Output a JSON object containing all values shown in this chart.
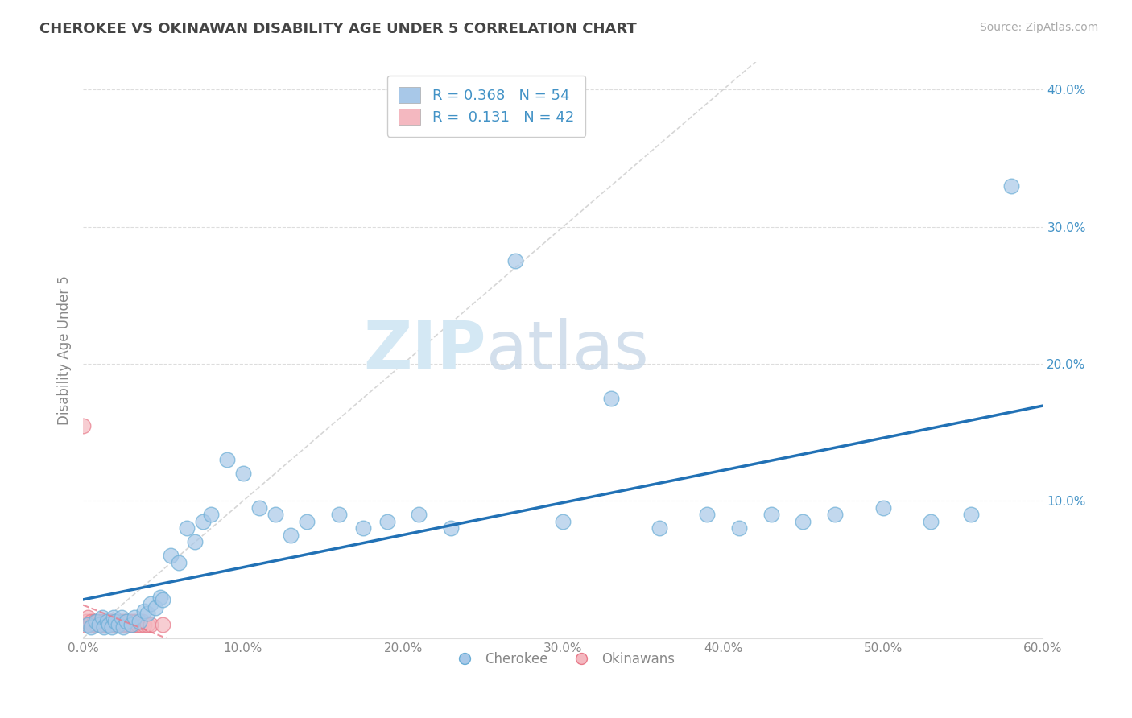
{
  "title": "CHEROKEE VS OKINAWAN DISABILITY AGE UNDER 5 CORRELATION CHART",
  "source": "Source: ZipAtlas.com",
  "xlabel": "",
  "ylabel": "Disability Age Under 5",
  "xlim": [
    0.0,
    0.6
  ],
  "ylim": [
    0.0,
    0.42
  ],
  "xticks": [
    0.0,
    0.1,
    0.2,
    0.3,
    0.4,
    0.5,
    0.6
  ],
  "xticklabels": [
    "0.0%",
    "10.0%",
    "20.0%",
    "30.0%",
    "40.0%",
    "50.0%",
    "60.0%"
  ],
  "yticks": [
    0.1,
    0.2,
    0.3,
    0.4
  ],
  "yticklabels": [
    "10.0%",
    "20.0%",
    "30.0%",
    "40.0%"
  ],
  "cherokee_R": 0.368,
  "cherokee_N": 54,
  "okinawan_R": 0.131,
  "okinawan_N": 42,
  "cherokee_color": "#a8c8e8",
  "cherokee_edge_color": "#6baed6",
  "okinawan_color": "#f4b8c0",
  "okinawan_edge_color": "#e87a8a",
  "cherokee_line_color": "#2171b5",
  "okinawan_line_color": "#e87a8a",
  "label_color": "#4292c6",
  "tick_color": "#4292c6",
  "watermark_color": "#d4e8f4",
  "cherokee_x": [
    0.003,
    0.005,
    0.008,
    0.01,
    0.012,
    0.013,
    0.015,
    0.016,
    0.018,
    0.019,
    0.02,
    0.022,
    0.024,
    0.025,
    0.027,
    0.03,
    0.032,
    0.035,
    0.038,
    0.04,
    0.042,
    0.045,
    0.048,
    0.05,
    0.055,
    0.06,
    0.065,
    0.07,
    0.075,
    0.08,
    0.09,
    0.1,
    0.11,
    0.12,
    0.13,
    0.14,
    0.16,
    0.175,
    0.19,
    0.21,
    0.23,
    0.27,
    0.3,
    0.33,
    0.36,
    0.39,
    0.41,
    0.43,
    0.45,
    0.47,
    0.5,
    0.53,
    0.555,
    0.58
  ],
  "cherokee_y": [
    0.01,
    0.008,
    0.012,
    0.01,
    0.015,
    0.008,
    0.012,
    0.01,
    0.008,
    0.015,
    0.012,
    0.01,
    0.015,
    0.008,
    0.012,
    0.01,
    0.015,
    0.012,
    0.02,
    0.018,
    0.025,
    0.022,
    0.03,
    0.028,
    0.06,
    0.055,
    0.08,
    0.07,
    0.085,
    0.09,
    0.13,
    0.12,
    0.095,
    0.09,
    0.075,
    0.085,
    0.09,
    0.08,
    0.085,
    0.09,
    0.08,
    0.275,
    0.085,
    0.175,
    0.08,
    0.09,
    0.08,
    0.09,
    0.085,
    0.09,
    0.095,
    0.085,
    0.09,
    0.33
  ],
  "okinawan_x": [
    0.0,
    0.001,
    0.002,
    0.003,
    0.004,
    0.005,
    0.006,
    0.007,
    0.008,
    0.009,
    0.01,
    0.011,
    0.012,
    0.013,
    0.014,
    0.015,
    0.016,
    0.017,
    0.018,
    0.019,
    0.02,
    0.021,
    0.022,
    0.023,
    0.024,
    0.025,
    0.026,
    0.027,
    0.028,
    0.029,
    0.03,
    0.031,
    0.032,
    0.033,
    0.034,
    0.035,
    0.036,
    0.037,
    0.038,
    0.04,
    0.042,
    0.05
  ],
  "okinawan_y": [
    0.155,
    0.01,
    0.012,
    0.015,
    0.01,
    0.012,
    0.01,
    0.012,
    0.01,
    0.012,
    0.01,
    0.012,
    0.01,
    0.012,
    0.01,
    0.012,
    0.01,
    0.012,
    0.01,
    0.012,
    0.01,
    0.012,
    0.01,
    0.012,
    0.01,
    0.012,
    0.01,
    0.012,
    0.01,
    0.012,
    0.01,
    0.012,
    0.01,
    0.012,
    0.01,
    0.012,
    0.01,
    0.012,
    0.01,
    0.01,
    0.01,
    0.01
  ],
  "diag_line_color": "#cccccc",
  "grid_color": "#dddddd"
}
